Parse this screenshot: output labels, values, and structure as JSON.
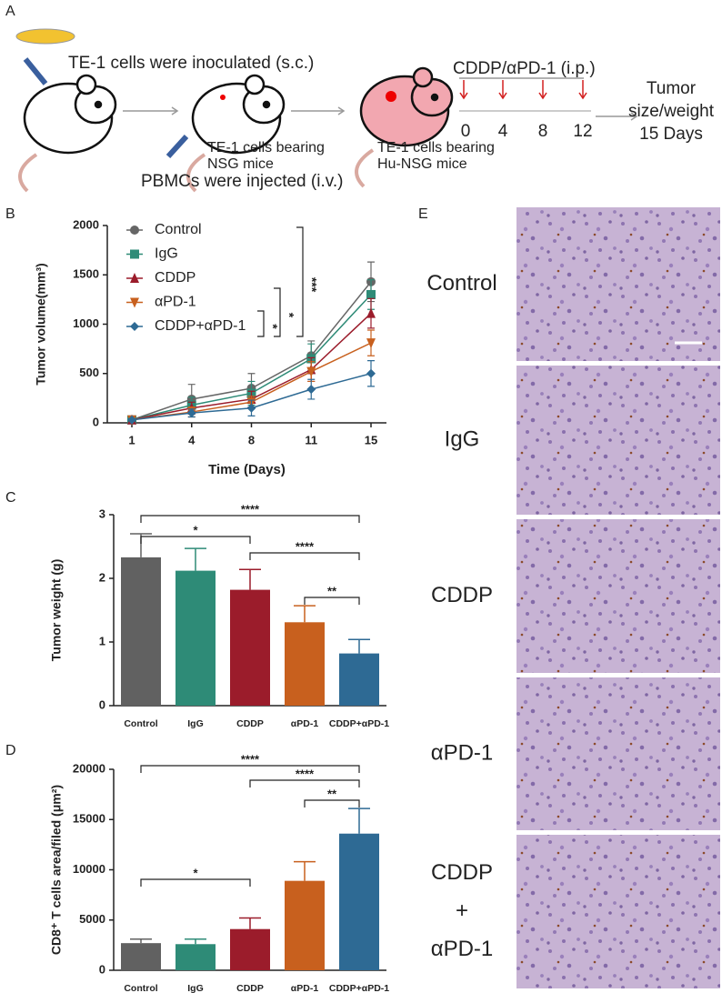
{
  "panel_a": {
    "label": "A",
    "inoculation": "TE-1 cells were inoculated (s.c.)",
    "mouse_1": [
      "TE-1 cells bearing",
      "NSG mice"
    ],
    "injection": "PBMCs were injected (i.v.)",
    "mouse_2": [
      "TE-1 cells bearing",
      "Hu-NSG mice"
    ],
    "treatment": "CDDP/αPD-1 (i.p.)",
    "days": [
      "0",
      "4",
      "8",
      "12"
    ],
    "endpoint": [
      "Tumor",
      "size/weight",
      "15 Days"
    ]
  },
  "chart_data": [
    {
      "type": "line",
      "panel": "B",
      "x_label": "Time (Days)",
      "y_label": "Tumor volume(mm³)",
      "categories": [
        "1",
        "4",
        "8",
        "11",
        "15"
      ],
      "ylim": [
        0,
        2000
      ],
      "yticks": [
        0,
        500,
        1000,
        1500,
        2000
      ],
      "series": [
        {
          "name": "Control",
          "color": "#666666",
          "marker": "circle",
          "values": [
            30,
            240,
            350,
            680,
            1430
          ],
          "errors": [
            10,
            150,
            150,
            150,
            200
          ]
        },
        {
          "name": "IgG",
          "color": "#2e8b77",
          "marker": "square",
          "values": [
            30,
            180,
            300,
            650,
            1300
          ],
          "errors": [
            10,
            80,
            120,
            150,
            150
          ]
        },
        {
          "name": "CDDP",
          "color": "#9b1c2b",
          "marker": "triangle-up",
          "values": [
            30,
            150,
            240,
            540,
            1110
          ],
          "errors": [
            10,
            60,
            80,
            120,
            150
          ]
        },
        {
          "name": "αPD-1",
          "color": "#c8601e",
          "marker": "triangle-down",
          "values": [
            30,
            110,
            210,
            520,
            810
          ],
          "errors": [
            10,
            50,
            60,
            100,
            130
          ]
        },
        {
          "name": "CDDP+αPD-1",
          "color": "#2e6a94",
          "marker": "diamond",
          "values": [
            30,
            100,
            150,
            340,
            500
          ],
          "errors": [
            10,
            40,
            80,
            100,
            130
          ]
        }
      ],
      "annotations": [
        "*",
        "*",
        "***"
      ]
    },
    {
      "type": "bar",
      "panel": "C",
      "y_label": "Tumor weight (g)",
      "categories": [
        "Control",
        "IgG",
        "CDDP",
        "αPD-1",
        "CDDP+αPD-1"
      ],
      "colors": [
        "#616161",
        "#2e8b77",
        "#9b1c2b",
        "#c8601e",
        "#2e6a94"
      ],
      "values": [
        2.33,
        2.12,
        1.82,
        1.31,
        0.82
      ],
      "errors": [
        0.37,
        0.35,
        0.32,
        0.26,
        0.22
      ],
      "ylim": [
        0,
        3
      ],
      "yticks": [
        0,
        1,
        2,
        3
      ],
      "annotations": [
        "****",
        "*",
        "****",
        "**"
      ]
    },
    {
      "type": "bar",
      "panel": "D",
      "y_label": "CD8⁺ T cells area/filed (μm²)",
      "categories": [
        "Control",
        "IgG",
        "CDDP",
        "αPD-1",
        "CDDP+αPD-1"
      ],
      "colors": [
        "#616161",
        "#2e8b77",
        "#9b1c2b",
        "#c8601e",
        "#2e6a94"
      ],
      "values": [
        2700,
        2600,
        4100,
        8900,
        13600
      ],
      "errors": [
        400,
        500,
        1100,
        1900,
        2500
      ],
      "ylim": [
        0,
        20000
      ],
      "yticks": [
        0,
        5000,
        10000,
        15000,
        20000
      ],
      "annotations": [
        "****",
        "****",
        "**",
        "*"
      ]
    }
  ],
  "panel_e": {
    "label": "E",
    "rows": [
      [
        "Control"
      ],
      [
        "IgG"
      ],
      [
        "CDDP"
      ],
      [
        "αPD-1"
      ],
      [
        "CDDP",
        "+",
        "αPD-1"
      ]
    ]
  }
}
